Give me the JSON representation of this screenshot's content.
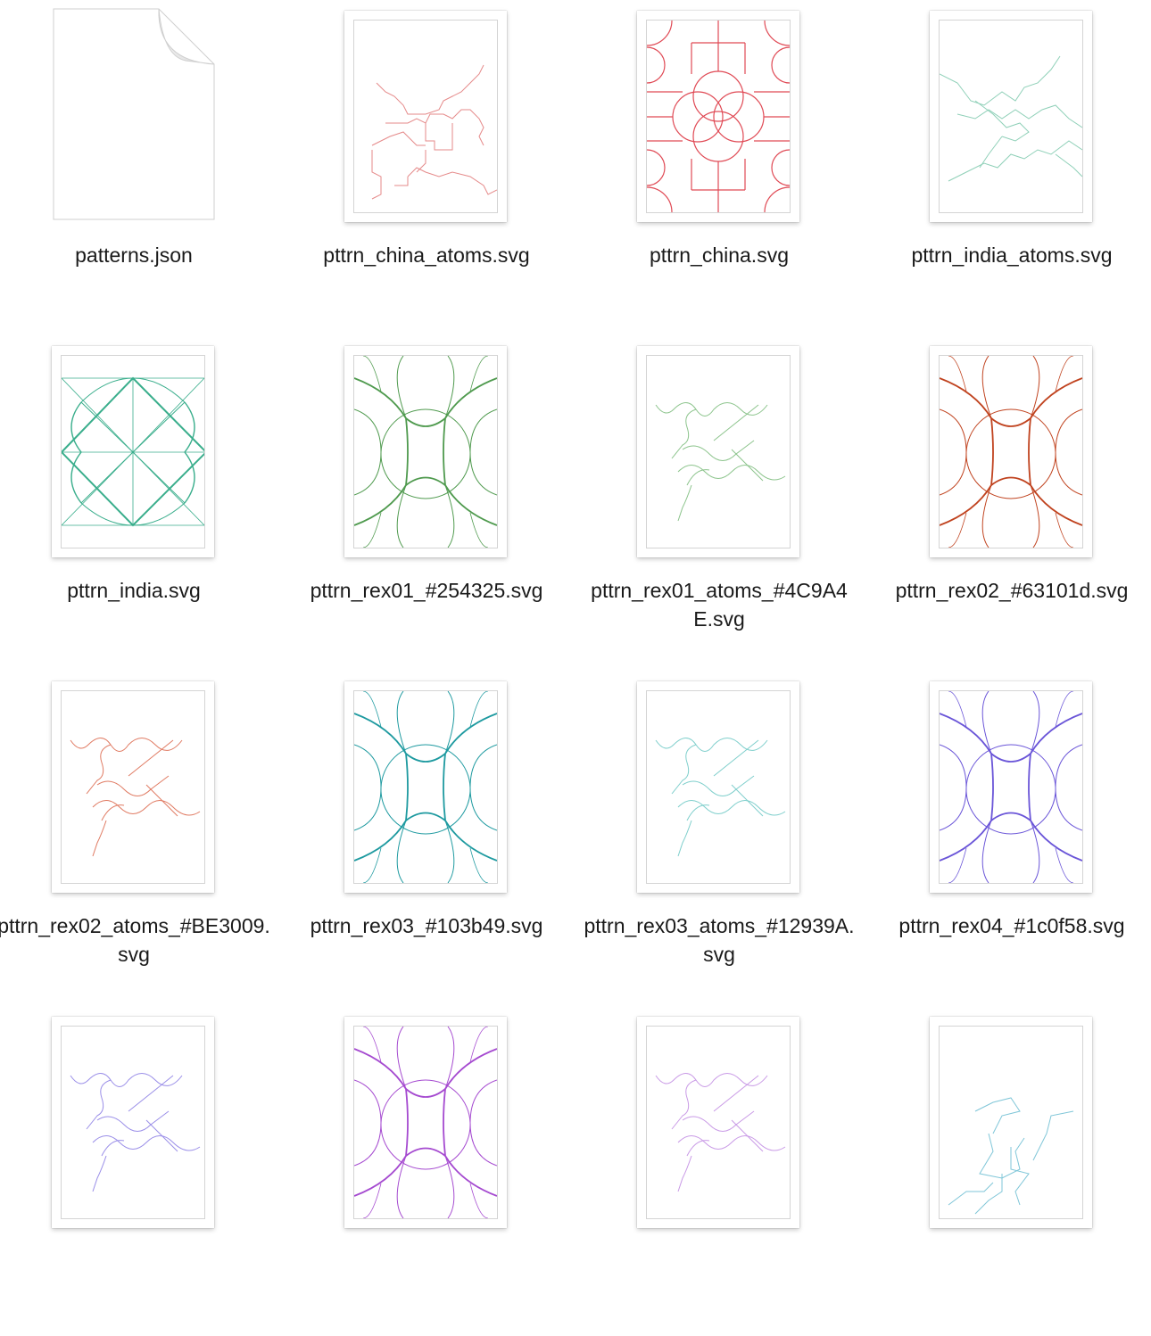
{
  "files": [
    {
      "name": "patterns.json",
      "kind": "doc"
    },
    {
      "name": "pttrn_china_atoms.svg",
      "kind": "china_atoms",
      "color": "#e58a8a"
    },
    {
      "name": "pttrn_china.svg",
      "kind": "china",
      "color": "#e04a55"
    },
    {
      "name": "pttrn_india_atoms.svg",
      "kind": "india_atoms",
      "color": "#8fd0b8"
    },
    {
      "name": "pttrn_india.svg",
      "kind": "india",
      "color": "#3aae8c"
    },
    {
      "name": "pttrn_rex01_#254325.svg",
      "kind": "rex",
      "color": "#4f9a4e"
    },
    {
      "name": "pttrn_rex01_atoms_#4C9A4E.svg",
      "kind": "rex_atoms",
      "color": "#8cc48c"
    },
    {
      "name": "pttrn_rex02_#63101d.svg",
      "kind": "rex",
      "color": "#c0431f"
    },
    {
      "name": "pttrn_rex02_atoms_#BE3009.svg",
      "kind": "rex_atoms",
      "color": "#e07b63"
    },
    {
      "name": "pttrn_rex03_#103b49.svg",
      "kind": "rex",
      "color": "#1e9aa0"
    },
    {
      "name": "pttrn_rex03_atoms_#12939A.svg",
      "kind": "rex_atoms",
      "color": "#7fcfcc"
    },
    {
      "name": "pttrn_rex04_#1c0f58.svg",
      "kind": "rex",
      "color": "#6a55d8"
    },
    {
      "name": "",
      "kind": "rex_atoms",
      "color": "#9a8ee8"
    },
    {
      "name": "",
      "kind": "rex",
      "color": "#a54ad0"
    },
    {
      "name": "",
      "kind": "rex_atoms",
      "color": "#c99ae6"
    },
    {
      "name": "",
      "kind": "india_atoms2",
      "color": "#7fc6d8"
    }
  ]
}
